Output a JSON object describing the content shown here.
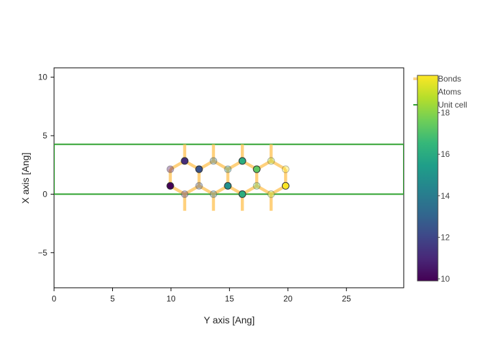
{
  "chart_data": {
    "type": "scatter",
    "title": "",
    "xlabel": "Y axis [Ang]",
    "ylabel": "X axis [Ang]",
    "xlim": [
      0,
      29.9
    ],
    "ylim": [
      -8,
      10.8
    ],
    "x_ticks": [
      0,
      5,
      10,
      15,
      20,
      25
    ],
    "y_ticks": [
      -5,
      0,
      5,
      10
    ],
    "x_tick_labels": [
      "0",
      "5",
      "10",
      "15",
      "20",
      "25"
    ],
    "y_tick_labels": [
      "−5",
      "0",
      "5",
      "10"
    ],
    "grid": false,
    "legend_position": "top-right",
    "legend": {
      "bonds_label": "Bonds",
      "atoms_label": "Atoms",
      "unit_cell_label": "Unit cell"
    },
    "colors": {
      "bonds": "#ffc966",
      "unit_cell": "#2ca02c",
      "atom_outline": "#333333"
    },
    "colorbar": {
      "colorscale": "viridis",
      "min": 9.9,
      "max": 19.8,
      "ticks": [
        10,
        12,
        14,
        16,
        18
      ],
      "tick_labels": [
        "10",
        "12",
        "14",
        "16",
        "18"
      ]
    },
    "unit_cell": {
      "corners": [
        [
          0,
          0
        ],
        [
          29.9,
          0
        ],
        [
          29.9,
          4.26
        ],
        [
          0,
          4.26
        ]
      ]
    },
    "atoms": [
      {
        "x": 9.94,
        "y": 0.71,
        "color": 9.94,
        "opacity": 1.0
      },
      {
        "x": 9.94,
        "y": 2.13,
        "color": 9.94,
        "opacity": 0.35
      },
      {
        "x": 11.17,
        "y": 2.84,
        "color": 11.17,
        "opacity": 1.0
      },
      {
        "x": 11.17,
        "y": 0.0,
        "color": 11.17,
        "opacity": 0.35
      },
      {
        "x": 12.4,
        "y": 2.13,
        "color": 12.4,
        "opacity": 1.0
      },
      {
        "x": 12.4,
        "y": 0.71,
        "color": 12.4,
        "opacity": 0.35
      },
      {
        "x": 13.63,
        "y": 0.0,
        "color": 13.63,
        "opacity": 0.35
      },
      {
        "x": 13.63,
        "y": 2.84,
        "color": 13.63,
        "opacity": 0.35
      },
      {
        "x": 14.86,
        "y": 0.71,
        "color": 14.86,
        "opacity": 1.0
      },
      {
        "x": 14.86,
        "y": 2.13,
        "color": 14.86,
        "opacity": 0.35
      },
      {
        "x": 16.1,
        "y": 2.84,
        "color": 16.1,
        "opacity": 1.0
      },
      {
        "x": 16.1,
        "y": 0.0,
        "color": 16.1,
        "opacity": 1.0
      },
      {
        "x": 17.33,
        "y": 2.13,
        "color": 17.33,
        "opacity": 1.0
      },
      {
        "x": 17.33,
        "y": 0.71,
        "color": 17.33,
        "opacity": 0.35
      },
      {
        "x": 18.56,
        "y": 0.0,
        "color": 18.56,
        "opacity": 0.35
      },
      {
        "x": 18.56,
        "y": 2.84,
        "color": 18.56,
        "opacity": 0.35
      },
      {
        "x": 19.8,
        "y": 0.71,
        "color": 19.8,
        "opacity": 1.0
      },
      {
        "x": 19.8,
        "y": 2.13,
        "color": 19.8,
        "opacity": 0.35
      }
    ],
    "bonds": [
      [
        [
          9.94,
          0.71
        ],
        [
          9.94,
          2.13
        ]
      ],
      [
        [
          9.94,
          2.13
        ],
        [
          11.17,
          2.84
        ]
      ],
      [
        [
          9.94,
          0.71
        ],
        [
          11.17,
          0.0
        ]
      ],
      [
        [
          11.17,
          2.84
        ],
        [
          12.4,
          2.13
        ]
      ],
      [
        [
          11.17,
          0.0
        ],
        [
          12.4,
          0.71
        ]
      ],
      [
        [
          12.4,
          2.13
        ],
        [
          12.4,
          0.71
        ]
      ],
      [
        [
          12.4,
          2.13
        ],
        [
          13.63,
          2.84
        ]
      ],
      [
        [
          12.4,
          0.71
        ],
        [
          13.63,
          0.0
        ]
      ],
      [
        [
          13.63,
          2.84
        ],
        [
          14.86,
          2.13
        ]
      ],
      [
        [
          13.63,
          0.0
        ],
        [
          14.86,
          0.71
        ]
      ],
      [
        [
          14.86,
          2.13
        ],
        [
          14.86,
          0.71
        ]
      ],
      [
        [
          14.86,
          2.13
        ],
        [
          16.1,
          2.84
        ]
      ],
      [
        [
          14.86,
          0.71
        ],
        [
          16.1,
          0.0
        ]
      ],
      [
        [
          16.1,
          2.84
        ],
        [
          17.33,
          2.13
        ]
      ],
      [
        [
          16.1,
          0.0
        ],
        [
          17.33,
          0.71
        ]
      ],
      [
        [
          17.33,
          2.13
        ],
        [
          17.33,
          0.71
        ]
      ],
      [
        [
          17.33,
          2.13
        ],
        [
          18.56,
          2.84
        ]
      ],
      [
        [
          17.33,
          0.71
        ],
        [
          18.56,
          0.0
        ]
      ],
      [
        [
          18.56,
          2.84
        ],
        [
          19.8,
          2.13
        ]
      ],
      [
        [
          18.56,
          0.0
        ],
        [
          19.8,
          0.71
        ]
      ],
      [
        [
          19.8,
          2.13
        ],
        [
          19.8,
          0.71
        ]
      ],
      [
        [
          11.17,
          2.84
        ],
        [
          11.17,
          4.26
        ]
      ],
      [
        [
          13.63,
          2.84
        ],
        [
          13.63,
          4.26
        ]
      ],
      [
        [
          16.1,
          2.84
        ],
        [
          16.1,
          4.26
        ]
      ],
      [
        [
          18.56,
          2.84
        ],
        [
          18.56,
          4.26
        ]
      ],
      [
        [
          11.17,
          0.0
        ],
        [
          11.17,
          -1.42
        ]
      ],
      [
        [
          13.63,
          0.0
        ],
        [
          13.63,
          -1.42
        ]
      ],
      [
        [
          16.1,
          0.0
        ],
        [
          16.1,
          -1.42
        ]
      ],
      [
        [
          18.56,
          0.0
        ],
        [
          18.56,
          -1.42
        ]
      ]
    ]
  }
}
